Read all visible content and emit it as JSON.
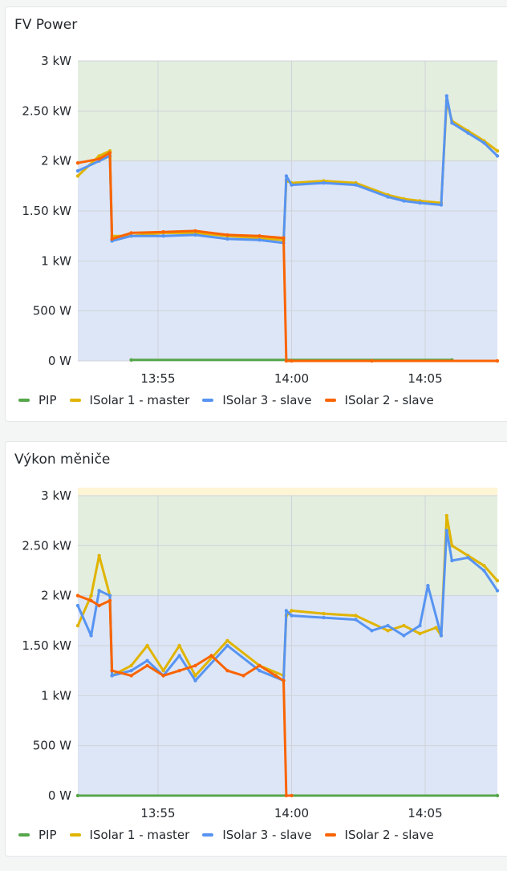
{
  "panels": [
    {
      "title": "FV Power"
    },
    {
      "title": "Výkon měniče"
    }
  ],
  "colors": {
    "PIP": "#56a64b",
    "ISolar 1 - master": "#e0b400",
    "ISolar 3 - slave": "#5794f2",
    "ISolar 2 - slave": "#fa6400",
    "band_low": "#dde6f6",
    "band_mid": "#e3eedf",
    "band_high": "#fdf5d4"
  },
  "chart_data": [
    {
      "type": "line",
      "title": "FV Power",
      "y_ticks": [
        {
          "value": 0,
          "label": "0 W"
        },
        {
          "value": 500,
          "label": "500 W"
        },
        {
          "value": 1000,
          "label": "1 kW"
        },
        {
          "value": 1500,
          "label": "1.50 kW"
        },
        {
          "value": 2000,
          "label": "2 kW"
        },
        {
          "value": 2500,
          "label": "2.50 kW"
        },
        {
          "value": 3000,
          "label": "3 kW"
        }
      ],
      "x_ticks": [
        {
          "value": 13.9167,
          "label": "13:55"
        },
        {
          "value": 14.0,
          "label": "14:00"
        },
        {
          "value": 14.0833,
          "label": "14:05"
        }
      ],
      "xlim": [
        13.8667,
        14.1283
      ],
      "ylim": [
        0,
        3000
      ],
      "grid": true,
      "legend_position": "bottom-left",
      "threshold_bands": [
        {
          "from": 0,
          "to": 2000,
          "color": "band_low"
        },
        {
          "from": 2000,
          "to": 3000,
          "color": "band_mid"
        }
      ],
      "series": [
        {
          "name": "PIP",
          "points": [
            [
              13.9,
              10
            ],
            [
              14.1,
              10
            ]
          ]
        },
        {
          "name": "ISolar 1 - master",
          "points": [
            [
              13.8667,
              1850
            ],
            [
              13.88,
              2050
            ],
            [
              13.8867,
              2100
            ],
            [
              13.888,
              1250
            ],
            [
              13.9,
              1250
            ],
            [
              13.92,
              1280
            ],
            [
              13.94,
              1280
            ],
            [
              13.96,
              1250
            ],
            [
              13.98,
              1230
            ],
            [
              13.995,
              1210
            ],
            [
              13.9967,
              1800
            ],
            [
              14.0,
              1780
            ],
            [
              14.02,
              1800
            ],
            [
              14.04,
              1780
            ],
            [
              14.06,
              1660
            ],
            [
              14.07,
              1620
            ],
            [
              14.08,
              1600
            ],
            [
              14.0933,
              1580
            ],
            [
              14.0967,
              2600
            ],
            [
              14.1,
              2400
            ],
            [
              14.11,
              2300
            ],
            [
              14.12,
              2200
            ],
            [
              14.1283,
              2100
            ]
          ]
        },
        {
          "name": "ISolar 3 - slave",
          "points": [
            [
              13.8667,
              1900
            ],
            [
              13.88,
              2000
            ],
            [
              13.8867,
              2050
            ],
            [
              13.888,
              1200
            ],
            [
              13.9,
              1250
            ],
            [
              13.92,
              1250
            ],
            [
              13.94,
              1260
            ],
            [
              13.96,
              1220
            ],
            [
              13.98,
              1210
            ],
            [
              13.995,
              1180
            ],
            [
              13.9967,
              1850
            ],
            [
              14.0,
              1760
            ],
            [
              14.02,
              1780
            ],
            [
              14.04,
              1760
            ],
            [
              14.06,
              1640
            ],
            [
              14.07,
              1600
            ],
            [
              14.08,
              1580
            ],
            [
              14.0933,
              1560
            ],
            [
              14.0967,
              2650
            ],
            [
              14.1,
              2380
            ],
            [
              14.11,
              2280
            ],
            [
              14.12,
              2180
            ],
            [
              14.1283,
              2050
            ]
          ]
        },
        {
          "name": "ISolar 2 - slave",
          "points": [
            [
              13.8667,
              1980
            ],
            [
              13.88,
              2020
            ],
            [
              13.8867,
              2080
            ],
            [
              13.888,
              1220
            ],
            [
              13.9,
              1280
            ],
            [
              13.92,
              1290
            ],
            [
              13.94,
              1300
            ],
            [
              13.96,
              1260
            ],
            [
              13.98,
              1250
            ],
            [
              13.995,
              1230
            ],
            [
              13.9967,
              0
            ],
            [
              14.0,
              0
            ],
            [
              14.05,
              0
            ],
            [
              14.1283,
              0
            ]
          ]
        }
      ]
    },
    {
      "type": "line",
      "title": "Výkon měniče",
      "y_ticks": [
        {
          "value": 0,
          "label": "0 W"
        },
        {
          "value": 500,
          "label": "500 W"
        },
        {
          "value": 1000,
          "label": "1 kW"
        },
        {
          "value": 1500,
          "label": "1.50 kW"
        },
        {
          "value": 2000,
          "label": "2 kW"
        },
        {
          "value": 2500,
          "label": "2.50 kW"
        },
        {
          "value": 3000,
          "label": "3 kW"
        }
      ],
      "x_ticks": [
        {
          "value": 13.9167,
          "label": "13:55"
        },
        {
          "value": 14.0,
          "label": "14:00"
        },
        {
          "value": 14.0833,
          "label": "14:05"
        }
      ],
      "xlim": [
        13.8667,
        14.1283
      ],
      "ylim": [
        0,
        3000
      ],
      "grid": true,
      "legend_position": "bottom-left",
      "threshold_bands": [
        {
          "from": 0,
          "to": 2000,
          "color": "band_low"
        },
        {
          "from": 2000,
          "to": 3000,
          "color": "band_mid"
        },
        {
          "from": 3000,
          "to": 3100,
          "color": "band_high"
        }
      ],
      "series": [
        {
          "name": "PIP",
          "points": [
            [
              13.8667,
              0
            ],
            [
              14.1283,
              0
            ]
          ]
        },
        {
          "name": "ISolar 1 - master",
          "points": [
            [
              13.8667,
              1700
            ],
            [
              13.875,
              2000
            ],
            [
              13.88,
              2400
            ],
            [
              13.8867,
              2000
            ],
            [
              13.888,
              1200
            ],
            [
              13.9,
              1300
            ],
            [
              13.91,
              1500
            ],
            [
              13.92,
              1250
            ],
            [
              13.93,
              1500
            ],
            [
              13.94,
              1200
            ],
            [
              13.96,
              1550
            ],
            [
              13.98,
              1300
            ],
            [
              13.995,
              1200
            ],
            [
              13.9967,
              1800
            ],
            [
              14.0,
              1850
            ],
            [
              14.02,
              1820
            ],
            [
              14.04,
              1800
            ],
            [
              14.06,
              1650
            ],
            [
              14.07,
              1700
            ],
            [
              14.08,
              1620
            ],
            [
              14.09,
              1680
            ],
            [
              14.0933,
              1600
            ],
            [
              14.0967,
              2800
            ],
            [
              14.1,
              2500
            ],
            [
              14.11,
              2400
            ],
            [
              14.12,
              2300
            ],
            [
              14.1283,
              2150
            ]
          ]
        },
        {
          "name": "ISolar 3 - slave",
          "points": [
            [
              13.8667,
              1900
            ],
            [
              13.875,
              1600
            ],
            [
              13.88,
              2050
            ],
            [
              13.8867,
              2000
            ],
            [
              13.888,
              1200
            ],
            [
              13.9,
              1250
            ],
            [
              13.91,
              1350
            ],
            [
              13.92,
              1200
            ],
            [
              13.93,
              1400
            ],
            [
              13.94,
              1150
            ],
            [
              13.96,
              1500
            ],
            [
              13.98,
              1250
            ],
            [
              13.995,
              1150
            ],
            [
              13.9967,
              1850
            ],
            [
              14.0,
              1800
            ],
            [
              14.02,
              1780
            ],
            [
              14.04,
              1760
            ],
            [
              14.05,
              1650
            ],
            [
              14.06,
              1700
            ],
            [
              14.07,
              1600
            ],
            [
              14.08,
              1700
            ],
            [
              14.085,
              2100
            ],
            [
              14.0933,
              1600
            ],
            [
              14.0967,
              2650
            ],
            [
              14.1,
              2350
            ],
            [
              14.11,
              2380
            ],
            [
              14.12,
              2250
            ],
            [
              14.1283,
              2050
            ]
          ]
        },
        {
          "name": "ISolar 2 - slave",
          "points": [
            [
              13.8667,
              2000
            ],
            [
              13.875,
              1950
            ],
            [
              13.88,
              1900
            ],
            [
              13.8867,
              1950
            ],
            [
              13.888,
              1250
            ],
            [
              13.9,
              1200
            ],
            [
              13.91,
              1300
            ],
            [
              13.92,
              1200
            ],
            [
              13.93,
              1250
            ],
            [
              13.94,
              1300
            ],
            [
              13.95,
              1400
            ],
            [
              13.96,
              1250
            ],
            [
              13.97,
              1200
            ],
            [
              13.98,
              1300
            ],
            [
              13.99,
              1200
            ],
            [
              13.995,
              1150
            ],
            [
              13.9967,
              0
            ],
            [
              14.0,
              0
            ]
          ]
        }
      ]
    }
  ]
}
